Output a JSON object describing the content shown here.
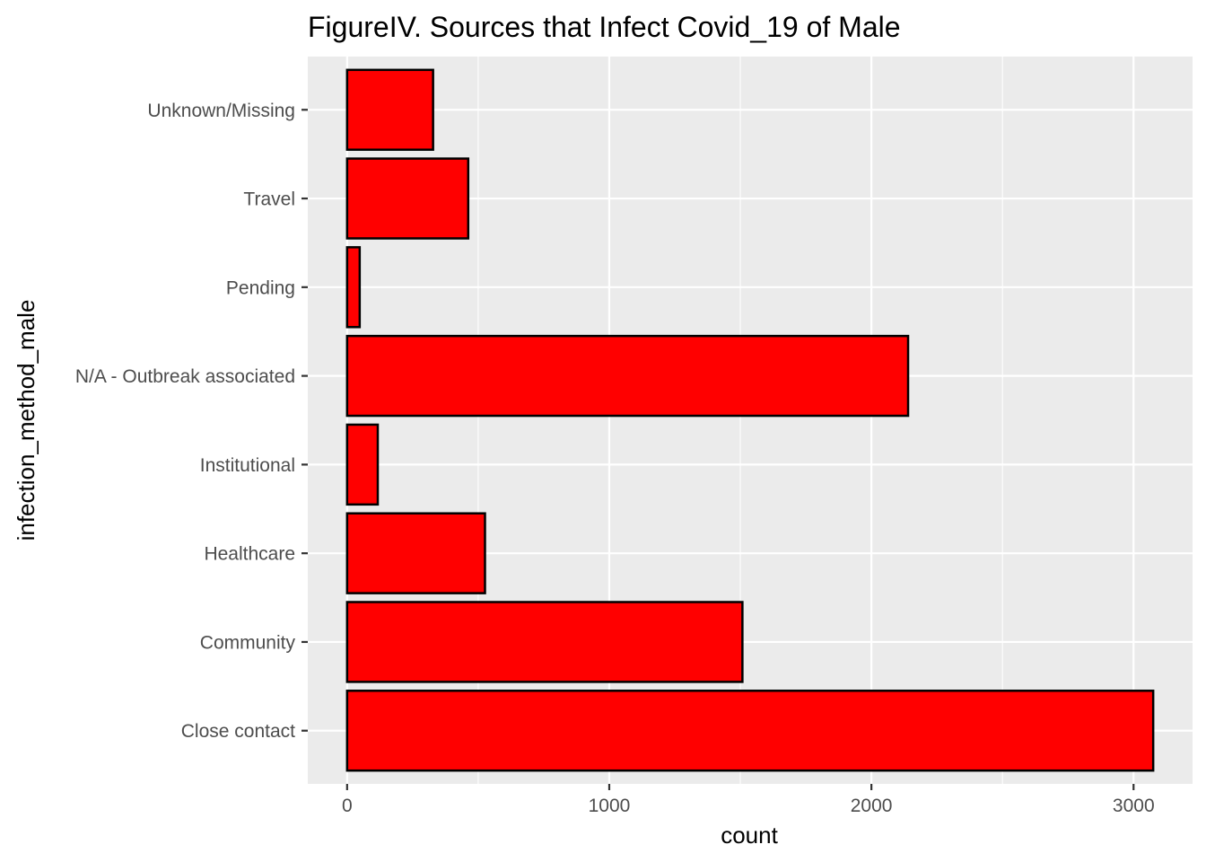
{
  "chart_data": {
    "type": "bar",
    "orientation": "horizontal",
    "title": "FigureIV. Sources that Infect Covid_19 of Male",
    "xlabel": "count",
    "ylabel": "infection_method_male",
    "categories": [
      "Close contact",
      "Community",
      "Healthcare",
      "Institutional",
      "N/A - Outbreak associated",
      "Pending",
      "Travel",
      "Unknown/Missing"
    ],
    "values": [
      3075,
      1508,
      526,
      117,
      2140,
      48,
      462,
      328
    ],
    "xlim": [
      -150,
      3225
    ],
    "xticks": [
      0,
      1000,
      2000,
      3000
    ],
    "grid": true,
    "colors": {
      "panel_background": "#ebebeb",
      "grid": "#ffffff",
      "bar_fill": "#ff0000",
      "bar_stroke": "#000000",
      "tick_text": "#4d4d4d",
      "tick_mark": "#333333"
    }
  }
}
